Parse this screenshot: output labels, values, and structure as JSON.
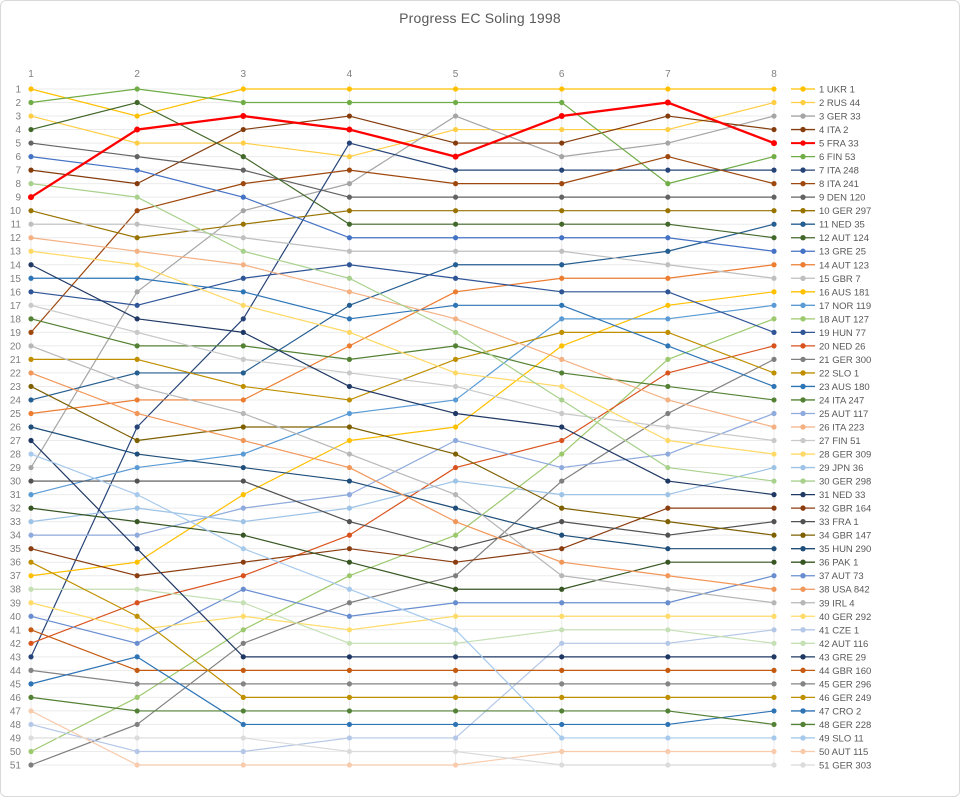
{
  "title": "Progress EC Soling 1998",
  "chart_data": {
    "type": "line",
    "subtype": "bump-rank-progress",
    "title": "Progress EC Soling 1998",
    "xlabel": "",
    "ylabel": "",
    "x": [
      1,
      2,
      3,
      4,
      5,
      6,
      7,
      8
    ],
    "x_axis": {
      "position": "top",
      "tick_labels": [
        "1",
        "2",
        "3",
        "4",
        "5",
        "6",
        "7",
        "8"
      ]
    },
    "y_axis": {
      "min": 1,
      "max": 51,
      "inverted": true,
      "tick_step": 1,
      "tick_color": "#7f7f7f"
    },
    "grid": true,
    "grid_color": "#ebebeb",
    "legend_position": "right",
    "legend_text_color": "#595959",
    "series": [
      {
        "name": "1 UKR 1",
        "color": "#FFC000",
        "ranks": [
          1,
          3,
          1,
          1,
          1,
          1,
          1,
          1
        ]
      },
      {
        "name": "2 RUS 44",
        "color": "#FFCE45",
        "ranks": [
          3,
          5,
          5,
          6,
          4,
          4,
          4,
          2
        ]
      },
      {
        "name": "3 GER 33",
        "color": "#A5A5A5",
        "ranks": [
          29,
          16,
          10,
          8,
          3,
          6,
          5,
          3
        ]
      },
      {
        "name": "4 ITA 2",
        "color": "#843C0C",
        "ranks": [
          7,
          8,
          4,
          3,
          5,
          5,
          3,
          4
        ]
      },
      {
        "name": "5 FRA 33",
        "color": "#FF0000",
        "ranks": [
          9,
          4,
          3,
          4,
          6,
          3,
          2,
          5
        ],
        "emphasis": true
      },
      {
        "name": "6 FIN 53",
        "color": "#70AD47",
        "ranks": [
          2,
          1,
          2,
          2,
          2,
          2,
          8,
          6
        ]
      },
      {
        "name": "7 ITA 248",
        "color": "#264478",
        "ranks": [
          43,
          26,
          18,
          5,
          7,
          7,
          7,
          7
        ]
      },
      {
        "name": "8 ITA 241",
        "color": "#9E480E",
        "ranks": [
          19,
          10,
          8,
          7,
          8,
          8,
          6,
          8
        ]
      },
      {
        "name": "9 DEN 120",
        "color": "#636363",
        "ranks": [
          5,
          6,
          7,
          9,
          9,
          9,
          9,
          9
        ]
      },
      {
        "name": "10 GER 297",
        "color": "#997300",
        "ranks": [
          10,
          12,
          11,
          10,
          10,
          10,
          10,
          10
        ]
      },
      {
        "name": "11 NED 35",
        "color": "#255E91",
        "ranks": [
          24,
          22,
          22,
          17,
          14,
          14,
          13,
          11
        ]
      },
      {
        "name": "12 AUT 124",
        "color": "#43682B",
        "ranks": [
          4,
          2,
          6,
          11,
          11,
          11,
          11,
          12
        ]
      },
      {
        "name": "13 GRE 25",
        "color": "#4472C4",
        "ranks": [
          6,
          7,
          9,
          12,
          12,
          12,
          12,
          13
        ]
      },
      {
        "name": "14 AUT 123",
        "color": "#ED7D31",
        "ranks": [
          25,
          24,
          24,
          20,
          16,
          15,
          15,
          14
        ]
      },
      {
        "name": "15 GBR 7",
        "color": "#BFBFBF",
        "ranks": [
          11,
          11,
          12,
          13,
          13,
          13,
          14,
          15
        ]
      },
      {
        "name": "16 AUS 181",
        "color": "#FFC000",
        "ranks": [
          37,
          36,
          31,
          27,
          26,
          20,
          17,
          16
        ]
      },
      {
        "name": "17 NOR 119",
        "color": "#5B9BD5",
        "ranks": [
          31,
          29,
          28,
          25,
          24,
          18,
          18,
          17
        ]
      },
      {
        "name": "18 AUT 127",
        "color": "#9DC96E",
        "ranks": [
          50,
          46,
          41,
          37,
          34,
          28,
          21,
          18
        ]
      },
      {
        "name": "19 HUN 77",
        "color": "#2F5597",
        "ranks": [
          16,
          17,
          15,
          14,
          15,
          16,
          16,
          19
        ]
      },
      {
        "name": "20 NED 26",
        "color": "#D9531E",
        "ranks": [
          42,
          39,
          37,
          34,
          29,
          27,
          22,
          20
        ]
      },
      {
        "name": "21 GER 300",
        "color": "#7F7F7F",
        "ranks": [
          51,
          48,
          42,
          39,
          37,
          30,
          25,
          21
        ]
      },
      {
        "name": "22 SLO 1",
        "color": "#BF8F00",
        "ranks": [
          21,
          21,
          23,
          24,
          21,
          19,
          19,
          22
        ]
      },
      {
        "name": "23 AUS 180",
        "color": "#2E75B6",
        "ranks": [
          15,
          15,
          16,
          18,
          17,
          17,
          20,
          23
        ]
      },
      {
        "name": "24 ITA 247",
        "color": "#548235",
        "ranks": [
          18,
          20,
          20,
          21,
          20,
          22,
          23,
          24
        ]
      },
      {
        "name": "25 AUT 117",
        "color": "#8FAADC",
        "ranks": [
          34,
          34,
          32,
          31,
          27,
          29,
          28,
          25
        ]
      },
      {
        "name": "26 ITA 223",
        "color": "#F4B183",
        "ranks": [
          12,
          13,
          14,
          16,
          18,
          21,
          24,
          26
        ]
      },
      {
        "name": "27 FIN 51",
        "color": "#C9C9C9",
        "ranks": [
          17,
          19,
          21,
          22,
          23,
          25,
          26,
          27
        ]
      },
      {
        "name": "28 GER 309",
        "color": "#FFD966",
        "ranks": [
          13,
          14,
          17,
          19,
          22,
          23,
          27,
          28
        ]
      },
      {
        "name": "29 JPN 36",
        "color": "#9DC3E6",
        "ranks": [
          33,
          32,
          33,
          32,
          30,
          31,
          31,
          29
        ]
      },
      {
        "name": "30 GER 298",
        "color": "#A9D18E",
        "ranks": [
          8,
          9,
          13,
          15,
          19,
          24,
          29,
          30
        ]
      },
      {
        "name": "31 NED 33",
        "color": "#1F3864",
        "ranks": [
          14,
          18,
          19,
          23,
          25,
          26,
          30,
          31
        ]
      },
      {
        "name": "32 GBR 164",
        "color": "#8A3D10",
        "ranks": [
          35,
          37,
          36,
          35,
          36,
          35,
          32,
          32
        ]
      },
      {
        "name": "33 FRA 1",
        "color": "#525252",
        "ranks": [
          30,
          30,
          30,
          33,
          35,
          33,
          34,
          33
        ]
      },
      {
        "name": "34 GBR 147",
        "color": "#7F6000",
        "ranks": [
          23,
          27,
          26,
          26,
          28,
          32,
          33,
          34
        ]
      },
      {
        "name": "35 HUN 290",
        "color": "#1E4E79",
        "ranks": [
          26,
          28,
          29,
          30,
          32,
          34,
          35,
          35
        ]
      },
      {
        "name": "36 PAK 1",
        "color": "#375623",
        "ranks": [
          32,
          33,
          34,
          36,
          38,
          38,
          36,
          36
        ]
      },
      {
        "name": "37 AUT 73",
        "color": "#698ED0",
        "ranks": [
          40,
          42,
          38,
          40,
          39,
          39,
          39,
          37
        ]
      },
      {
        "name": "38 USA 842",
        "color": "#F1975A",
        "ranks": [
          22,
          25,
          27,
          29,
          33,
          36,
          37,
          38
        ]
      },
      {
        "name": "39 IRL 4",
        "color": "#B7B7B7",
        "ranks": [
          20,
          23,
          25,
          28,
          31,
          37,
          38,
          39
        ]
      },
      {
        "name": "40 GER 292",
        "color": "#FFDB69",
        "ranks": [
          39,
          41,
          40,
          41,
          40,
          40,
          40,
          40
        ]
      },
      {
        "name": "41 CZE 1",
        "color": "#B4C7E7",
        "ranks": [
          48,
          50,
          50,
          49,
          49,
          42,
          42,
          41
        ]
      },
      {
        "name": "42 AUT 116",
        "color": "#C5E0B4",
        "ranks": [
          38,
          38,
          39,
          42,
          42,
          41,
          41,
          42
        ]
      },
      {
        "name": "43 GRE 29",
        "color": "#203864",
        "ranks": [
          27,
          35,
          43,
          43,
          43,
          43,
          43,
          43
        ]
      },
      {
        "name": "44 GBR 160",
        "color": "#C55A11",
        "ranks": [
          41,
          44,
          44,
          44,
          44,
          44,
          44,
          44
        ]
      },
      {
        "name": "45 GER 296",
        "color": "#848484",
        "ranks": [
          44,
          45,
          45,
          45,
          45,
          45,
          45,
          45
        ]
      },
      {
        "name": "46 GER 249",
        "color": "#BF9000",
        "ranks": [
          36,
          40,
          46,
          46,
          46,
          46,
          46,
          46
        ]
      },
      {
        "name": "47 CRO 2",
        "color": "#2E74B5",
        "ranks": [
          45,
          43,
          48,
          48,
          48,
          48,
          48,
          47
        ]
      },
      {
        "name": "48 GER 228",
        "color": "#538135",
        "ranks": [
          46,
          47,
          47,
          47,
          47,
          47,
          47,
          48
        ]
      },
      {
        "name": "49 SLO 11",
        "color": "#A6C9EC",
        "ranks": [
          28,
          31,
          35,
          38,
          41,
          49,
          49,
          49
        ]
      },
      {
        "name": "50 AUT 115",
        "color": "#F8CBAD",
        "ranks": [
          47,
          51,
          51,
          51,
          51,
          50,
          50,
          50
        ]
      },
      {
        "name": "51 GER 303",
        "color": "#DBDBDB",
        "ranks": [
          49,
          49,
          49,
          50,
          50,
          51,
          51,
          51
        ]
      }
    ]
  },
  "style": {
    "title_color": "#595959",
    "axis_label_color": "#7f7f7f",
    "grid_color": "#ebebeb",
    "line_width": 1.2,
    "emphasis_line_width": 2.3,
    "marker_radius": 2.6
  }
}
